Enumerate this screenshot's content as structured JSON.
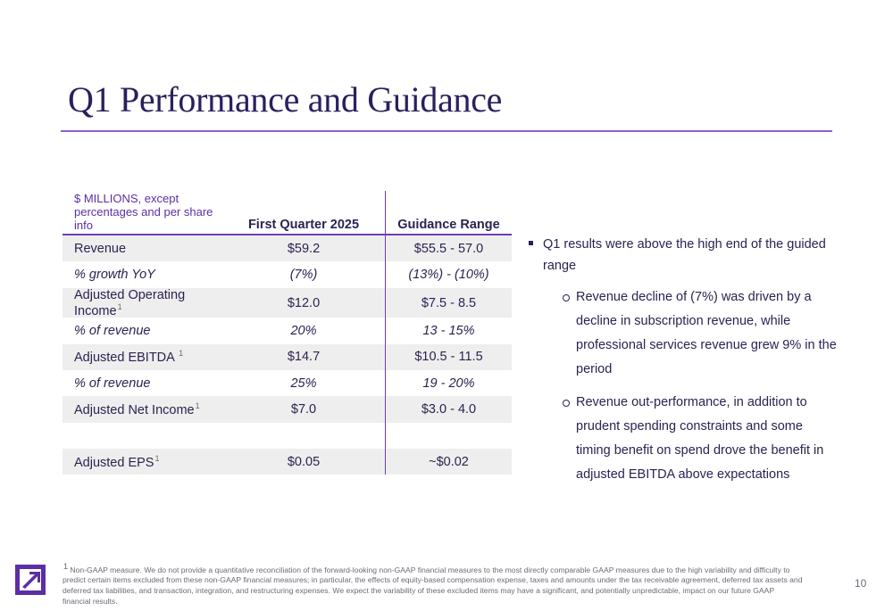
{
  "title": "Q1 Performance and Guidance",
  "table": {
    "headers": [
      "$ MILLIONS, except percentages and per share info",
      "First Quarter 2025",
      "Guidance Range"
    ],
    "rows": [
      {
        "label": "Revenue",
        "sup": "",
        "q1": "$59.2",
        "guidance": "$55.5 - 57.0"
      },
      {
        "label": "% growth YoY",
        "sup": "",
        "q1": "(7%)",
        "guidance": "(13%) - (10%)"
      },
      {
        "label": "Adjusted Operating Income",
        "sup": "1",
        "q1": "$12.0",
        "guidance": "$7.5 - 8.5"
      },
      {
        "label": "% of revenue",
        "sup": "",
        "q1": "20%",
        "guidance": "13 - 15%"
      },
      {
        "label": "Adjusted EBITDA ",
        "sup": "1",
        "q1": "$14.7",
        "guidance": "$10.5 - 11.5"
      },
      {
        "label": "% of revenue",
        "sup": "",
        "q1": "25%",
        "guidance": "19 - 20%"
      },
      {
        "label": "Adjusted Net Income",
        "sup": "1",
        "q1": "$7.0",
        "guidance": "$3.0 - 4.0"
      },
      {
        "label": "",
        "sup": "",
        "q1": "",
        "guidance": ""
      },
      {
        "label": "Adjusted EPS",
        "sup": "1",
        "q1": "$0.05",
        "guidance": "~$0.02"
      }
    ]
  },
  "bullets": {
    "main": "Q1 results were above the high end of the guided range",
    "sub": [
      "Revenue decline of (7%) was driven by a decline in subscription revenue, while professional services revenue grew 9% in the period",
      "Revenue out-performance, in addition to prudent spending constraints and some timing benefit on spend drove the benefit in adjusted EBITDA above expectations"
    ]
  },
  "footnote": {
    "marker": "1",
    "text": " Non-GAAP measure. We do not provide a quantitative reconciliation of the forward-looking non-GAAP financial measures to the most directly comparable GAAP measures due to the high variability and difficulty to predict certain items excluded from these non-GAAP financial measures; in particular, the effects of equity-based compensation expense, taxes and amounts under the tax receivable agreement, deferred tax assets and deferred tax liabilities, and transaction, integration, and restructuring expenses. We expect the variability of these excluded items may have a significant, and potentially unpredictable, impact on our future GAAP financial results."
  },
  "page_number": "10",
  "colors": {
    "accent": "#6a3fb5",
    "title": "#2b1f5e",
    "logo": "#5b2ea6",
    "row_shade": "#efeeee"
  },
  "logo_icon": "arrow-up-right-icon"
}
